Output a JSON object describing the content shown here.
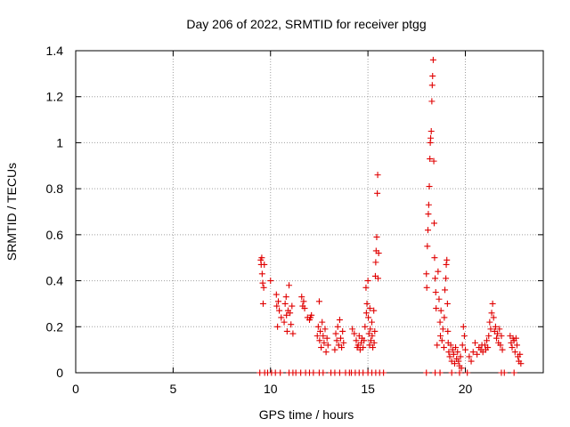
{
  "chart_data": {
    "type": "scatter",
    "title": "Day 206 of 2022, SRMTID for receiver ptgg",
    "xlabel": "GPS time / hours",
    "ylabel": "SRMTID / TECUs",
    "xlim": [
      0,
      24
    ],
    "ylim": [
      0,
      1.4
    ],
    "xticks": [
      0,
      5,
      10,
      15,
      20
    ],
    "xtick_labels": [
      "0",
      "5",
      "10",
      "15",
      "20"
    ],
    "yticks": [
      0,
      0.2,
      0.4,
      0.6,
      0.8,
      1,
      1.2,
      1.4
    ],
    "ytick_labels": [
      "0",
      "0.2",
      "0.4",
      "0.6",
      "0.8",
      "1",
      "1.2",
      "1.4"
    ],
    "grid": true,
    "marker": "plus",
    "color": "#e00000",
    "series": [
      {
        "name": "SRMTID",
        "points": [
          [
            9.5,
            0.49
          ],
          [
            9.52,
            0.47
          ],
          [
            9.55,
            0.5
          ],
          [
            9.57,
            0.43
          ],
          [
            9.6,
            0.39
          ],
          [
            9.62,
            0.3
          ],
          [
            9.65,
            0.37
          ],
          [
            9.68,
            0.47
          ],
          [
            10.0,
            0.4
          ],
          [
            10.3,
            0.34
          ],
          [
            10.32,
            0.29
          ],
          [
            10.36,
            0.2
          ],
          [
            10.4,
            0.31
          ],
          [
            10.45,
            0.27
          ],
          [
            10.55,
            0.24
          ],
          [
            10.7,
            0.22
          ],
          [
            10.75,
            0.3
          ],
          [
            10.8,
            0.33
          ],
          [
            10.82,
            0.25
          ],
          [
            10.85,
            0.18
          ],
          [
            10.9,
            0.27
          ],
          [
            10.95,
            0.38
          ],
          [
            11.0,
            0.26
          ],
          [
            11.05,
            0.21
          ],
          [
            11.1,
            0.29
          ],
          [
            11.15,
            0.17
          ],
          [
            11.6,
            0.33
          ],
          [
            11.65,
            0.29
          ],
          [
            11.7,
            0.31
          ],
          [
            11.75,
            0.28
          ],
          [
            11.9,
            0.24
          ],
          [
            12.0,
            0.23
          ],
          [
            12.05,
            0.24
          ],
          [
            12.1,
            0.25
          ],
          [
            12.4,
            0.16
          ],
          [
            12.45,
            0.2
          ],
          [
            12.5,
            0.31
          ],
          [
            12.52,
            0.14
          ],
          [
            12.55,
            0.18
          ],
          [
            12.6,
            0.11
          ],
          [
            12.65,
            0.22
          ],
          [
            12.7,
            0.16
          ],
          [
            12.75,
            0.13
          ],
          [
            12.8,
            0.19
          ],
          [
            12.85,
            0.09
          ],
          [
            12.9,
            0.15
          ],
          [
            12.95,
            0.12
          ],
          [
            13.3,
            0.1
          ],
          [
            13.35,
            0.17
          ],
          [
            13.4,
            0.14
          ],
          [
            13.45,
            0.2
          ],
          [
            13.5,
            0.12
          ],
          [
            13.55,
            0.23
          ],
          [
            13.6,
            0.15
          ],
          [
            13.65,
            0.11
          ],
          [
            13.7,
            0.18
          ],
          [
            13.75,
            0.13
          ],
          [
            14.2,
            0.19
          ],
          [
            14.3,
            0.17
          ],
          [
            14.4,
            0.14
          ],
          [
            14.45,
            0.11
          ],
          [
            14.5,
            0.12
          ],
          [
            14.55,
            0.16
          ],
          [
            14.6,
            0.1
          ],
          [
            14.65,
            0.13
          ],
          [
            14.7,
            0.15
          ],
          [
            14.75,
            0.11
          ],
          [
            14.8,
            0.14
          ],
          [
            14.85,
            0.2
          ],
          [
            14.9,
            0.37
          ],
          [
            14.92,
            0.26
          ],
          [
            14.95,
            0.3
          ],
          [
            15.0,
            0.4
          ],
          [
            15.02,
            0.24
          ],
          [
            15.05,
            0.17
          ],
          [
            15.08,
            0.12
          ],
          [
            15.1,
            0.28
          ],
          [
            15.12,
            0.19
          ],
          [
            15.15,
            0.14
          ],
          [
            15.2,
            0.22
          ],
          [
            15.22,
            0.16
          ],
          [
            15.25,
            0.11
          ],
          [
            15.3,
            0.27
          ],
          [
            15.32,
            0.13
          ],
          [
            15.35,
            0.18
          ],
          [
            15.38,
            0.42
          ],
          [
            15.4,
            0.48
          ],
          [
            15.42,
            0.53
          ],
          [
            15.45,
            0.59
          ],
          [
            15.48,
            0.78
          ],
          [
            15.5,
            0.86
          ],
          [
            15.52,
            0.41
          ],
          [
            15.55,
            0.52
          ],
          [
            18.0,
            0.43
          ],
          [
            18.02,
            0.37
          ],
          [
            18.05,
            0.55
          ],
          [
            18.08,
            0.62
          ],
          [
            18.1,
            0.69
          ],
          [
            18.12,
            0.73
          ],
          [
            18.15,
            0.81
          ],
          [
            18.18,
            0.93
          ],
          [
            18.2,
            1.0
          ],
          [
            18.22,
            1.02
          ],
          [
            18.25,
            1.05
          ],
          [
            18.28,
            1.18
          ],
          [
            18.3,
            1.25
          ],
          [
            18.32,
            1.29
          ],
          [
            18.35,
            1.36
          ],
          [
            18.38,
            0.92
          ],
          [
            18.4,
            0.65
          ],
          [
            18.42,
            0.5
          ],
          [
            18.45,
            0.41
          ],
          [
            18.48,
            0.35
          ],
          [
            18.5,
            0.28
          ],
          [
            18.55,
            0.12
          ],
          [
            18.6,
            0.44
          ],
          [
            18.65,
            0.32
          ],
          [
            18.7,
            0.22
          ],
          [
            18.72,
            0.16
          ],
          [
            18.75,
            0.27
          ],
          [
            18.8,
            0.14
          ],
          [
            18.85,
            0.19
          ],
          [
            18.9,
            0.11
          ],
          [
            18.92,
            0.24
          ],
          [
            18.95,
            0.36
          ],
          [
            19.0,
            0.41
          ],
          [
            19.02,
            0.47
          ],
          [
            19.05,
            0.49
          ],
          [
            19.08,
            0.3
          ],
          [
            19.1,
            0.18
          ],
          [
            19.12,
            0.13
          ],
          [
            19.15,
            0.09
          ],
          [
            19.2,
            0.07
          ],
          [
            19.25,
            0.12
          ],
          [
            19.3,
            0.05
          ],
          [
            19.35,
            0.1
          ],
          [
            19.4,
            0.08
          ],
          [
            19.45,
            0.04
          ],
          [
            19.5,
            0.11
          ],
          [
            19.55,
            0.06
          ],
          [
            19.6,
            0.09
          ],
          [
            19.65,
            0.05
          ],
          [
            19.7,
            0.03
          ],
          [
            19.75,
            0.07
          ],
          [
            19.8,
            0.02
          ],
          [
            19.85,
            0.12
          ],
          [
            19.9,
            0.2
          ],
          [
            19.95,
            0.16
          ],
          [
            20.0,
            0.1
          ],
          [
            20.2,
            0.07
          ],
          [
            20.3,
            0.05
          ],
          [
            20.4,
            0.09
          ],
          [
            20.5,
            0.13
          ],
          [
            20.6,
            0.08
          ],
          [
            20.7,
            0.11
          ],
          [
            20.8,
            0.1
          ],
          [
            20.85,
            0.12
          ],
          [
            20.9,
            0.09
          ],
          [
            21.0,
            0.12
          ],
          [
            21.05,
            0.1
          ],
          [
            21.1,
            0.14
          ],
          [
            21.15,
            0.11
          ],
          [
            21.2,
            0.16
          ],
          [
            21.25,
            0.22
          ],
          [
            21.3,
            0.19
          ],
          [
            21.35,
            0.26
          ],
          [
            21.4,
            0.3
          ],
          [
            21.45,
            0.24
          ],
          [
            21.5,
            0.18
          ],
          [
            21.55,
            0.2
          ],
          [
            21.6,
            0.15
          ],
          [
            21.65,
            0.17
          ],
          [
            21.7,
            0.13
          ],
          [
            21.75,
            0.19
          ],
          [
            21.8,
            0.12
          ],
          [
            21.85,
            0.16
          ],
          [
            21.9,
            0.1
          ],
          [
            22.3,
            0.16
          ],
          [
            22.35,
            0.13
          ],
          [
            22.4,
            0.11
          ],
          [
            22.45,
            0.15
          ],
          [
            22.5,
            0.14
          ],
          [
            22.55,
            0.09
          ],
          [
            22.6,
            0.15
          ],
          [
            22.65,
            0.12
          ],
          [
            22.7,
            0.07
          ],
          [
            22.75,
            0.05
          ],
          [
            22.8,
            0.08
          ],
          [
            22.85,
            0.04
          ],
          [
            9.45,
            0
          ],
          [
            9.7,
            0
          ],
          [
            9.85,
            0
          ],
          [
            10.05,
            0
          ],
          [
            10.25,
            0
          ],
          [
            10.5,
            0
          ],
          [
            10.95,
            0
          ],
          [
            11.15,
            0
          ],
          [
            11.3,
            0
          ],
          [
            11.55,
            0
          ],
          [
            11.8,
            0
          ],
          [
            12.0,
            0
          ],
          [
            12.2,
            0
          ],
          [
            12.5,
            0
          ],
          [
            12.7,
            0
          ],
          [
            13.1,
            0
          ],
          [
            13.3,
            0
          ],
          [
            13.55,
            0
          ],
          [
            13.85,
            0
          ],
          [
            14.05,
            0
          ],
          [
            14.15,
            0
          ],
          [
            14.35,
            0
          ],
          [
            14.55,
            0
          ],
          [
            14.75,
            0
          ],
          [
            15.0,
            0
          ],
          [
            15.2,
            0
          ],
          [
            15.4,
            0
          ],
          [
            15.6,
            0
          ],
          [
            15.8,
            0
          ],
          [
            18.0,
            0
          ],
          [
            18.45,
            0
          ],
          [
            18.7,
            0
          ],
          [
            19.3,
            0
          ],
          [
            19.7,
            0
          ],
          [
            20.1,
            0
          ],
          [
            21.85,
            0
          ],
          [
            22.0,
            0
          ],
          [
            22.5,
            0
          ]
        ]
      }
    ]
  }
}
